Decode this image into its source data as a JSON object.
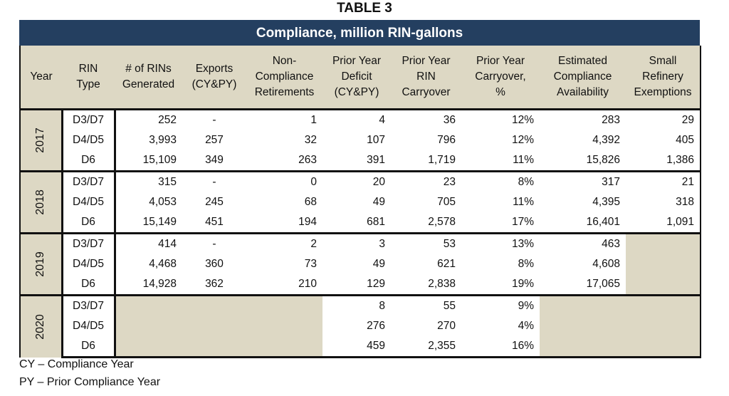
{
  "title": "TABLE 3",
  "banner": "Compliance, million RIN-gallons",
  "headers": [
    "Year",
    "RIN Type",
    "# of RINs Generated",
    "Exports (CY&PY)",
    "Non-Compliance Retirements",
    "Prior Year Deficit (CY&PY)",
    "Prior Year RIN Carryover",
    "Prior Year Carryover, %",
    "Estimated Compliance Availability",
    "Small Refinery Exemptions"
  ],
  "header_lines": [
    [
      "Year"
    ],
    [
      "RIN",
      "Type"
    ],
    [
      "# of RINs",
      "Generated"
    ],
    [
      "Exports",
      "(CY&PY)"
    ],
    [
      "Non-",
      "Compliance",
      "Retirements"
    ],
    [
      "Prior Year",
      "Deficit",
      "(CY&PY)"
    ],
    [
      "Prior Year",
      "RIN",
      "Carryover"
    ],
    [
      "Prior Year",
      "Carryover,",
      "%"
    ],
    [
      "Estimated",
      "Compliance",
      "Availability"
    ],
    [
      "Small",
      "Refinery",
      "Exemptions"
    ]
  ],
  "groups": [
    {
      "year": "2017",
      "rows": [
        [
          "D3/D7",
          "252",
          "-",
          "1",
          "4",
          "36",
          "12%",
          "283",
          "29"
        ],
        [
          "D4/D5",
          "3,993",
          "257",
          "32",
          "107",
          "796",
          "12%",
          "4,392",
          "405"
        ],
        [
          "D6",
          "15,109",
          "349",
          "263",
          "391",
          "1,719",
          "11%",
          "15,826",
          "1,386"
        ]
      ]
    },
    {
      "year": "2018",
      "rows": [
        [
          "D3/D7",
          "315",
          "-",
          "0",
          "20",
          "23",
          "8%",
          "317",
          "21"
        ],
        [
          "D4/D5",
          "4,053",
          "245",
          "68",
          "49",
          "705",
          "11%",
          "4,395",
          "318"
        ],
        [
          "D6",
          "15,149",
          "451",
          "194",
          "681",
          "2,578",
          "17%",
          "16,401",
          "1,091"
        ]
      ]
    },
    {
      "year": "2019",
      "rows": [
        [
          "D3/D7",
          "414",
          "-",
          "2",
          "3",
          "53",
          "13%",
          "463",
          ""
        ],
        [
          "D4/D5",
          "4,468",
          "360",
          "73",
          "49",
          "621",
          "8%",
          "4,608",
          ""
        ],
        [
          "D6",
          "14,928",
          "362",
          "210",
          "129",
          "2,838",
          "19%",
          "17,065",
          ""
        ]
      ]
    },
    {
      "year": "2020",
      "rows": [
        [
          "D3/D7",
          "",
          "",
          "",
          "8",
          "55",
          "9%",
          "",
          ""
        ],
        [
          "D4/D5",
          "",
          "",
          "",
          "276",
          "270",
          "4%",
          "",
          ""
        ],
        [
          "D6",
          "",
          "",
          "",
          "459",
          "2,355",
          "16%",
          "",
          ""
        ]
      ]
    }
  ],
  "notes": [
    "CY – Compliance Year",
    "PY – Prior Compliance Year"
  ],
  "colors": {
    "banner": "#243f60",
    "shade": "#ddd8c4"
  }
}
